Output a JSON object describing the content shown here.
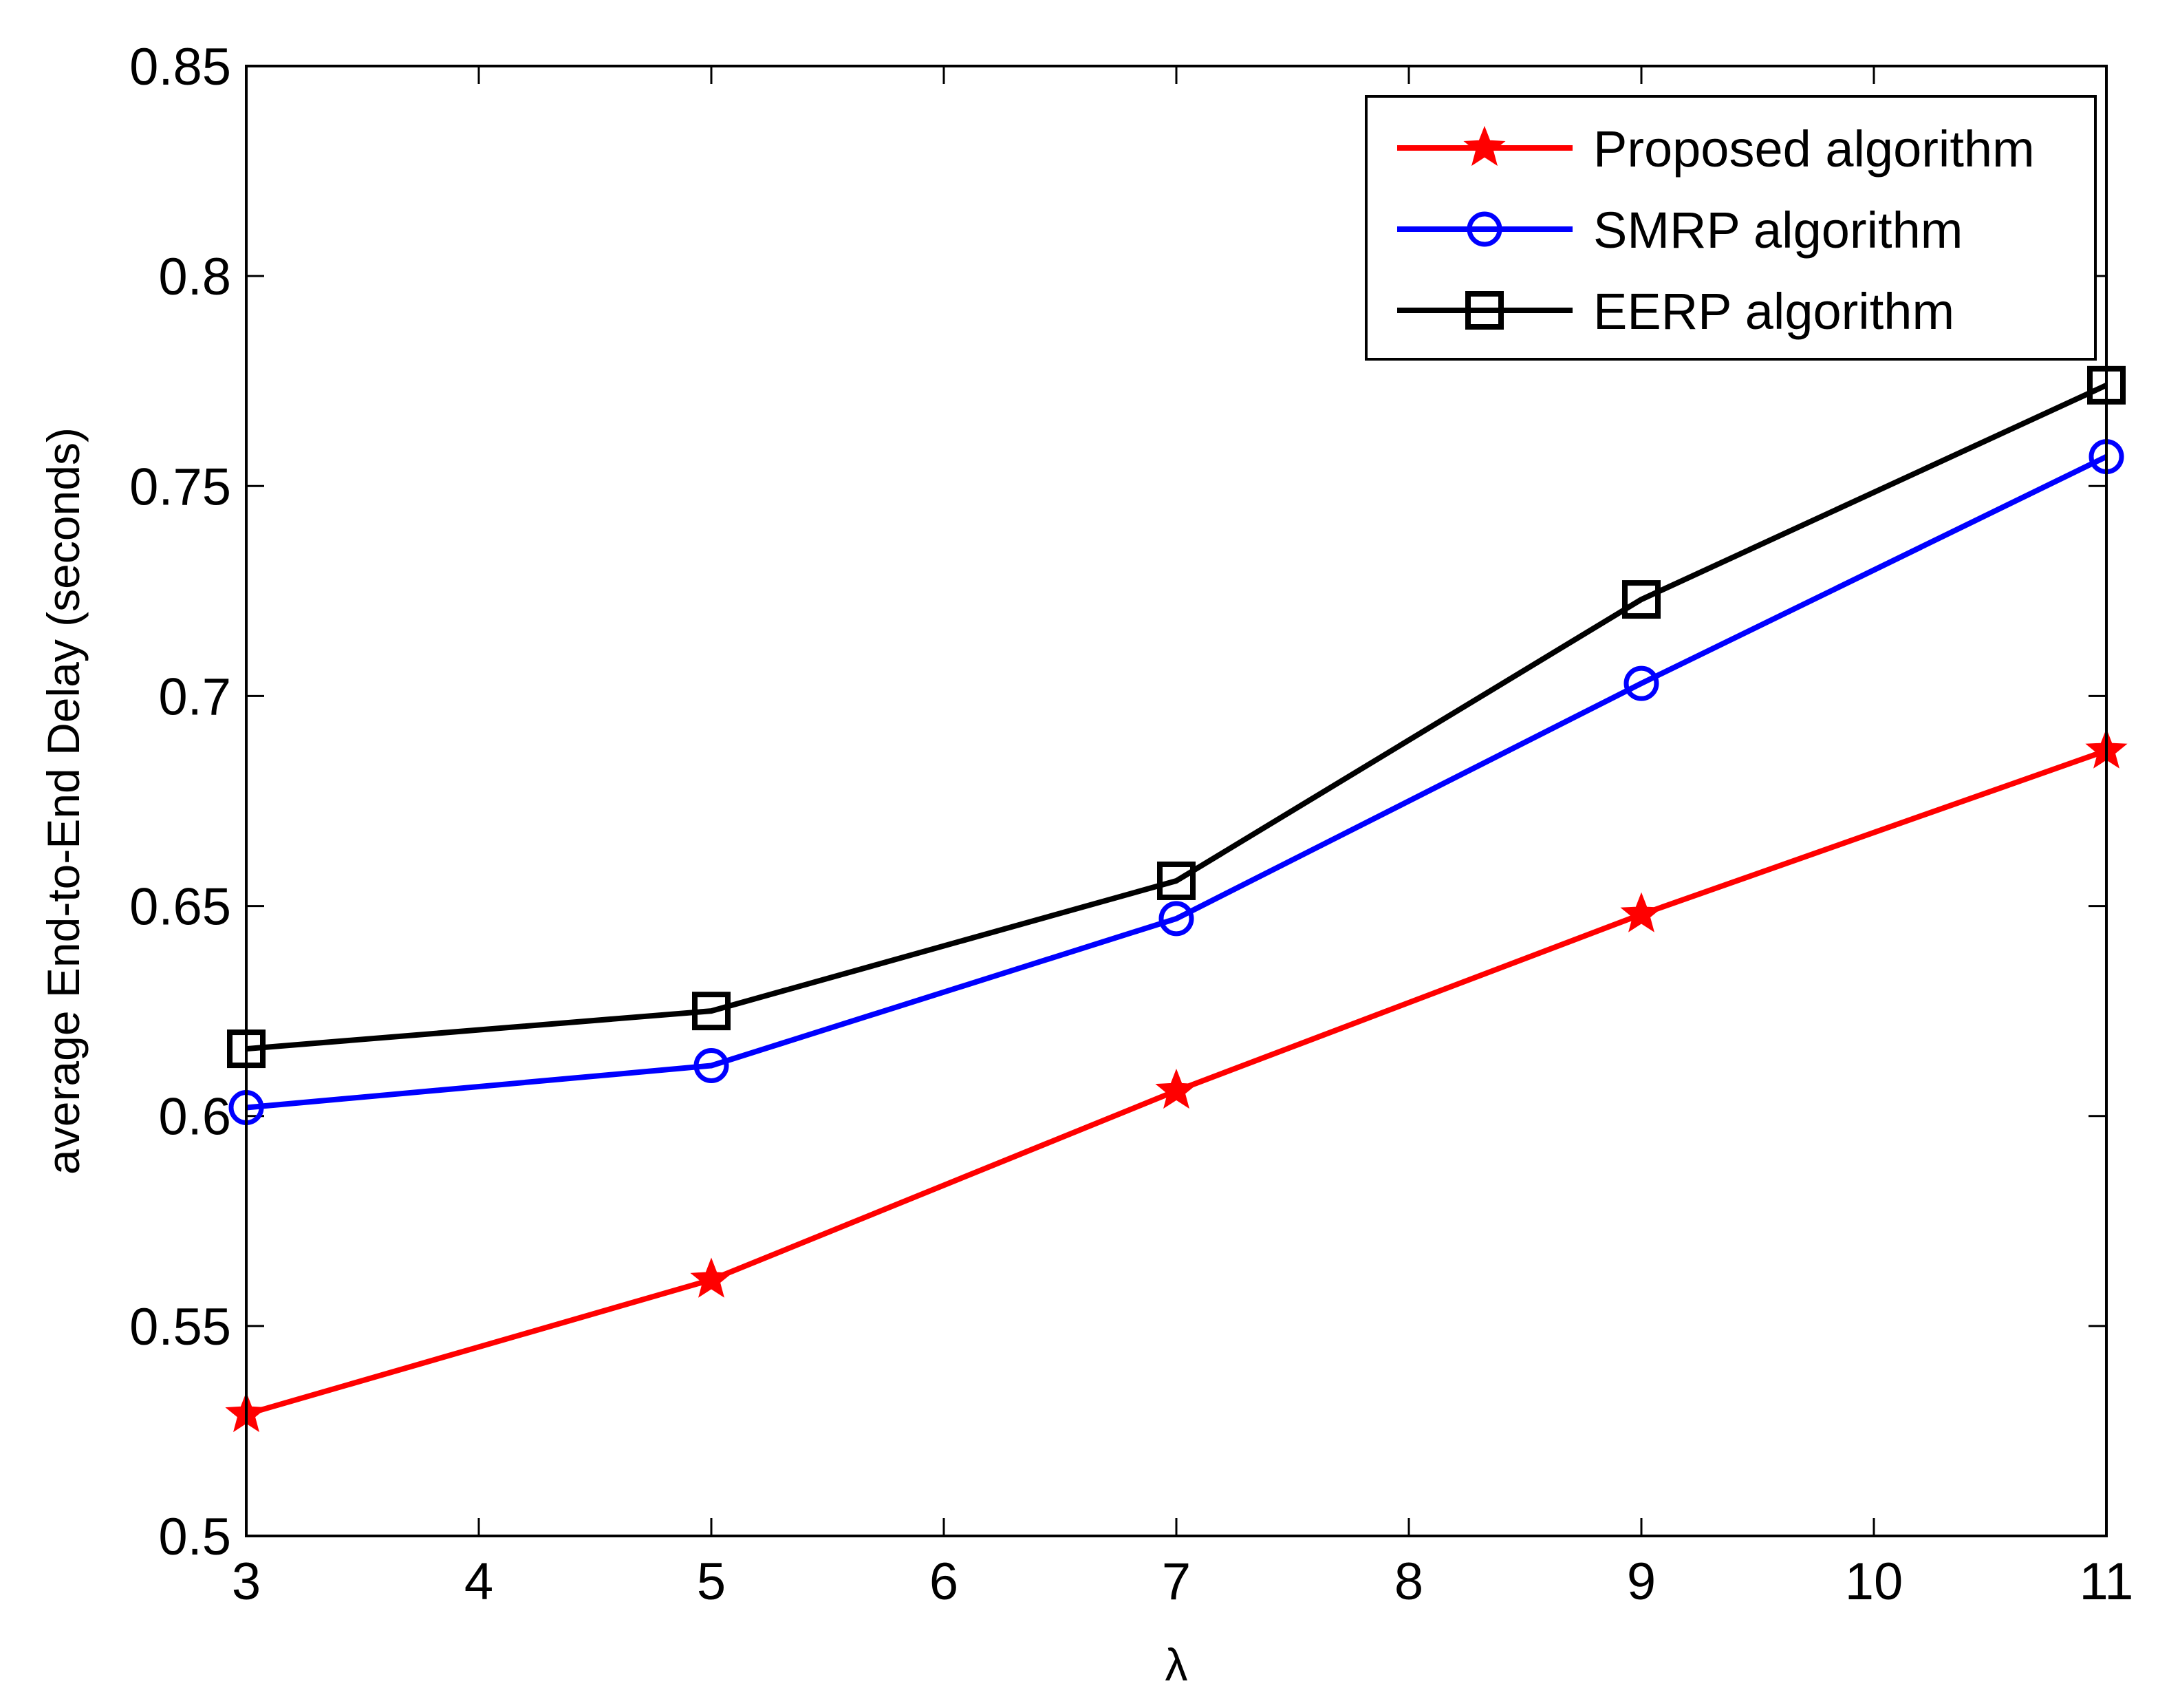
{
  "chart_data": {
    "type": "line",
    "title": "",
    "xlabel": "λ",
    "ylabel": "average End-to-End Delay (seconds)",
    "xlim": [
      3,
      11
    ],
    "ylim": [
      0.5,
      0.85
    ],
    "grid": false,
    "legend_position": "top-right",
    "x": [
      3,
      5,
      7,
      9,
      11
    ],
    "xticks": [
      3,
      4,
      5,
      6,
      7,
      8,
      9,
      10,
      11
    ],
    "xtick_labels": [
      "3",
      "4",
      "5",
      "6",
      "7",
      "8",
      "9",
      "10",
      "11"
    ],
    "yticks": [
      0.5,
      0.55,
      0.6,
      0.65,
      0.7,
      0.75,
      0.8,
      0.85
    ],
    "ytick_labels": [
      "0.5",
      "0.55",
      "0.6",
      "0.65",
      "0.7",
      "0.75",
      "0.8",
      "0.85"
    ],
    "series": [
      {
        "name": "Proposed algorithm",
        "color": "#ff0000",
        "marker": "star",
        "values": [
          0.529,
          0.561,
          0.606,
          0.648,
          0.687
        ]
      },
      {
        "name": "SMRP algorithm",
        "color": "#0000ff",
        "marker": "circle",
        "values": [
          0.602,
          0.612,
          0.647,
          0.703,
          0.757
        ]
      },
      {
        "name": "EERP algorithm",
        "color": "#000000",
        "marker": "square",
        "values": [
          0.616,
          0.625,
          0.656,
          0.723,
          0.774
        ]
      }
    ]
  }
}
